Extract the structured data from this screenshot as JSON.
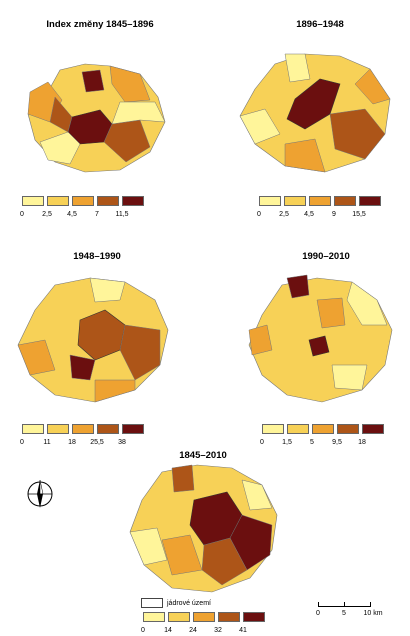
{
  "panels": [
    {
      "title": "Index změny 1845–1896",
      "ticks": [
        "0",
        "2,5",
        "4,5",
        "7",
        "11,5"
      ],
      "colors": [
        "#fff59a",
        "#f7d157",
        "#eea231",
        "#ad5518",
        "#6b0f0f"
      ]
    },
    {
      "title": "1896–1948",
      "ticks": [
        "0",
        "2,5",
        "4,5",
        "9",
        "15,5"
      ],
      "colors": [
        "#fff59a",
        "#f7d157",
        "#eea231",
        "#ad5518",
        "#6b0f0f"
      ]
    },
    {
      "title": "1948–1990",
      "ticks": [
        "0",
        "11",
        "18",
        "25,5",
        "38"
      ],
      "colors": [
        "#fff59a",
        "#f7d157",
        "#eea231",
        "#ad5518",
        "#6b0f0f"
      ]
    },
    {
      "title": "1990–2010",
      "ticks": [
        "0",
        "1,5",
        "5",
        "9,5",
        "18"
      ],
      "colors": [
        "#fff59a",
        "#f7d157",
        "#eea231",
        "#ad5518",
        "#6b0f0f"
      ]
    },
    {
      "title": "1845–2010",
      "ticks": [
        "0",
        "14",
        "24",
        "32",
        "41"
      ],
      "colors": [
        "#fff59a",
        "#f7d157",
        "#eea231",
        "#ad5518",
        "#6b0f0f"
      ]
    }
  ],
  "core_area_label": "jádrové území",
  "scale": {
    "labels": [
      "0",
      "5",
      "10 km"
    ]
  },
  "compass_icon": "north-arrow-icon"
}
